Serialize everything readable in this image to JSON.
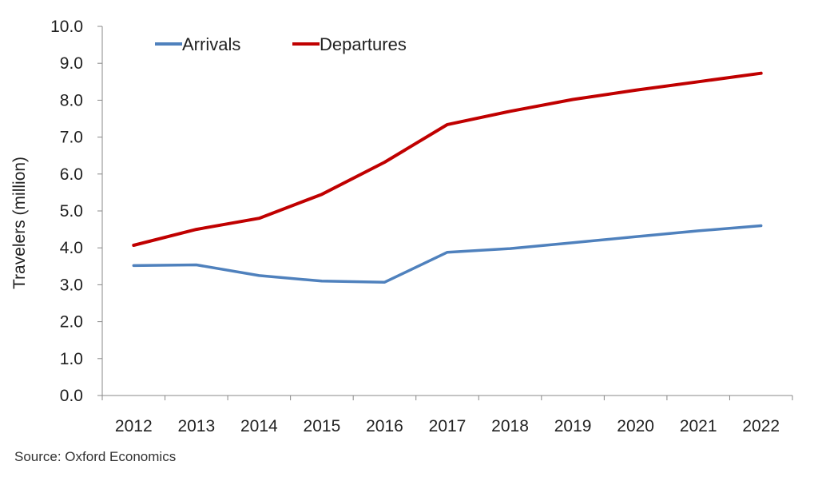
{
  "source_note": "Source:  Oxford Economics",
  "chart_data": {
    "type": "line",
    "x": [
      "2012",
      "2013",
      "2014",
      "2015",
      "2016",
      "2017",
      "2018",
      "2019",
      "2020",
      "2021",
      "2022"
    ],
    "ylabel": "Travelers (million)",
    "xlabel": "",
    "ylim": [
      0,
      10
    ],
    "yticks": [
      "0.0",
      "1.0",
      "2.0",
      "3.0",
      "4.0",
      "5.0",
      "6.0",
      "7.0",
      "8.0",
      "9.0",
      "10.0"
    ],
    "grid": false,
    "legend_position": "top-left",
    "series": [
      {
        "name": "Arrivals",
        "color": "#4f81bd",
        "values": [
          3.52,
          3.54,
          3.25,
          3.1,
          3.07,
          3.88,
          3.98,
          4.14,
          4.3,
          4.46,
          4.6
        ]
      },
      {
        "name": "Departures",
        "color": "#c00000",
        "values": [
          4.07,
          4.5,
          4.8,
          5.45,
          6.32,
          7.34,
          7.7,
          8.02,
          8.27,
          8.5,
          8.73
        ]
      }
    ]
  }
}
